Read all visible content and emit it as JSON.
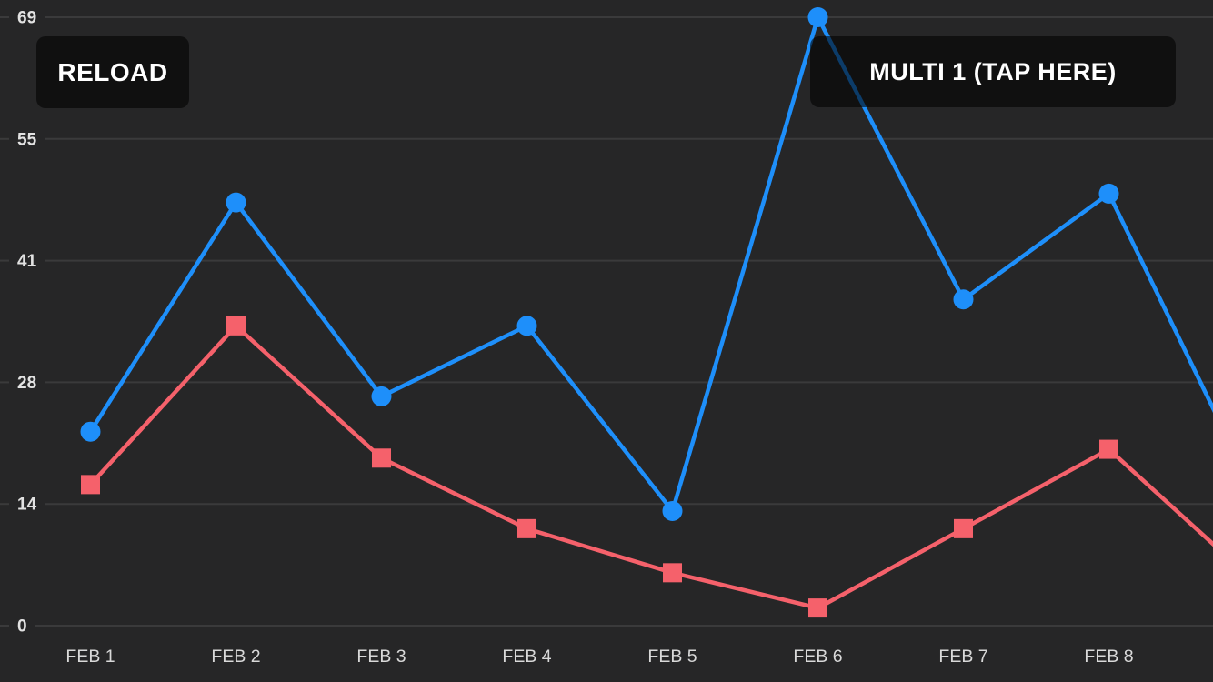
{
  "buttons": {
    "reload_label": "RELOAD",
    "multi_label": "MULTI 1 (TAP HERE)"
  },
  "chart_data": {
    "type": "line",
    "title": "",
    "xlabel": "",
    "ylabel": "",
    "categories": [
      "FEB 1",
      "FEB 2",
      "FEB 3",
      "FEB 4",
      "FEB 5",
      "FEB 6",
      "FEB 7",
      "FEB 8"
    ],
    "series": [
      {
        "name": "red-squares-line",
        "color": "#F5616B",
        "marker": "square",
        "values": [
          16,
          34,
          19,
          11,
          6,
          2,
          11,
          20
        ],
        "offscreen_next_value": 5
      },
      {
        "name": "blue-circles-line",
        "color": "#1E8FFA",
        "marker": "circle",
        "values": [
          22,
          48,
          26,
          34,
          13,
          69,
          37,
          49
        ],
        "offscreen_next_value": 15
      }
    ],
    "y_axis": {
      "ticks": [
        0,
        14,
        28,
        41,
        55,
        69
      ],
      "ylim": [
        0,
        69
      ]
    },
    "grid": true,
    "legend": "none",
    "colors": {
      "background": "#262627",
      "gridline": "#3A3A3B",
      "y_tick_label": "#E2E2E2",
      "x_tick_label": "#D9D9D9"
    }
  }
}
